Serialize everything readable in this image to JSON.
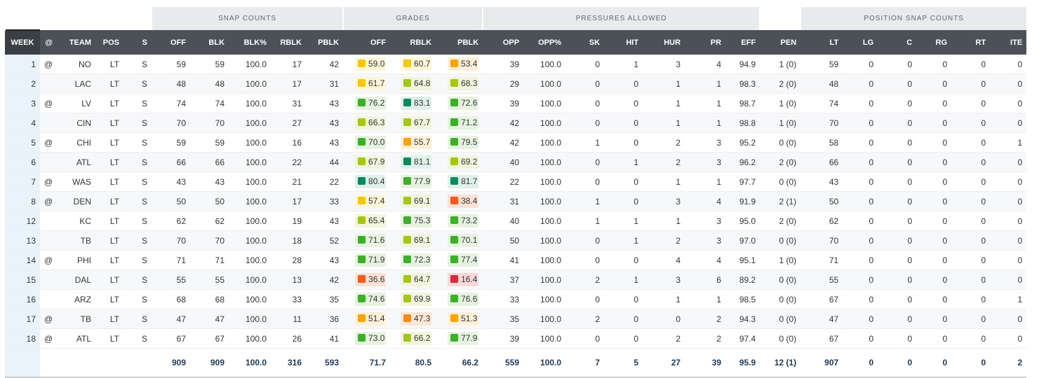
{
  "group_headers": [
    "SNAP COUNTS",
    "GRADES",
    "PRESSURES ALLOWED",
    "POSITION SNAP COUNTS"
  ],
  "columns": [
    "WEEK",
    "@",
    "TEAM",
    "POS",
    "S",
    "OFF",
    "BLK",
    "BLK%",
    "RBLK",
    "PBLK",
    "OFF",
    "RBLK",
    "PBLK",
    "OPP",
    "OPP%",
    "SK",
    "HIT",
    "HUR",
    "PR",
    "EFF",
    "PEN",
    "LT",
    "LG",
    "C",
    "RG",
    "RT",
    "ITE"
  ],
  "rows": [
    [
      "1",
      "@",
      "NO",
      "LT",
      "S",
      "59",
      "59",
      "100.0",
      "17",
      "42",
      "59.0",
      "60.7",
      "53.4",
      "39",
      "100.0",
      "0",
      "1",
      "3",
      "4",
      "94.9",
      "1 (0)",
      "59",
      "0",
      "0",
      "0",
      "0",
      "0"
    ],
    [
      "2",
      null,
      "LAC",
      "LT",
      "S",
      "48",
      "48",
      "100.0",
      "17",
      "31",
      "61.7",
      "64.8",
      "68.3",
      "29",
      "100.0",
      "0",
      "0",
      "1",
      "1",
      "98.3",
      "2 (0)",
      "48",
      "0",
      "0",
      "0",
      "0",
      "0"
    ],
    [
      "3",
      "@",
      "LV",
      "LT",
      "S",
      "74",
      "74",
      "100.0",
      "31",
      "43",
      "76.2",
      "83.1",
      "72.6",
      "39",
      "100.0",
      "0",
      "0",
      "1",
      "1",
      "98.7",
      "1 (0)",
      "74",
      "0",
      "0",
      "0",
      "0",
      "0"
    ],
    [
      "4",
      null,
      "CIN",
      "LT",
      "S",
      "70",
      "70",
      "100.0",
      "27",
      "43",
      "66.3",
      "67.7",
      "71.2",
      "42",
      "100.0",
      "0",
      "0",
      "1",
      "1",
      "98.8",
      "1 (0)",
      "70",
      "0",
      "0",
      "0",
      "0",
      "0"
    ],
    [
      "5",
      "@",
      "CHI",
      "LT",
      "S",
      "59",
      "59",
      "100.0",
      "16",
      "43",
      "70.0",
      "55.7",
      "79.5",
      "42",
      "100.0",
      "1",
      "0",
      "2",
      "3",
      "95.2",
      "0 (0)",
      "58",
      "0",
      "0",
      "0",
      "0",
      "1"
    ],
    [
      "6",
      null,
      "ATL",
      "LT",
      "S",
      "66",
      "66",
      "100.0",
      "22",
      "44",
      "67.9",
      "81.1",
      "69.2",
      "40",
      "100.0",
      "0",
      "1",
      "2",
      "3",
      "96.2",
      "2 (0)",
      "66",
      "0",
      "0",
      "0",
      "0",
      "0"
    ],
    [
      "7",
      "@",
      "WAS",
      "LT",
      "S",
      "43",
      "43",
      "100.0",
      "21",
      "22",
      "80.4",
      "77.9",
      "81.7",
      "22",
      "100.0",
      "0",
      "0",
      "1",
      "1",
      "97.7",
      "0 (0)",
      "43",
      "0",
      "0",
      "0",
      "0",
      "0"
    ],
    [
      "8",
      "@",
      "DEN",
      "LT",
      "S",
      "50",
      "50",
      "100.0",
      "17",
      "33",
      "57.4",
      "69.1",
      "38.4",
      "31",
      "100.0",
      "1",
      "0",
      "3",
      "4",
      "91.9",
      "2 (1)",
      "50",
      "0",
      "0",
      "0",
      "0",
      "0"
    ],
    [
      "12",
      null,
      "KC",
      "LT",
      "S",
      "62",
      "62",
      "100.0",
      "19",
      "43",
      "65.4",
      "75.3",
      "73.2",
      "40",
      "100.0",
      "1",
      "1",
      "1",
      "3",
      "95.0",
      "2 (0)",
      "62",
      "0",
      "0",
      "0",
      "0",
      "0"
    ],
    [
      "13",
      null,
      "TB",
      "LT",
      "S",
      "70",
      "70",
      "100.0",
      "18",
      "52",
      "71.6",
      "69.1",
      "70.1",
      "50",
      "100.0",
      "0",
      "1",
      "2",
      "3",
      "97.0",
      "0 (0)",
      "70",
      "0",
      "0",
      "0",
      "0",
      "0"
    ],
    [
      "14",
      "@",
      "PHI",
      "LT",
      "S",
      "71",
      "71",
      "100.0",
      "28",
      "43",
      "71.9",
      "72.3",
      "77.4",
      "41",
      "100.0",
      "0",
      "0",
      "4",
      "4",
      "95.1",
      "1 (0)",
      "71",
      "0",
      "0",
      "0",
      "0",
      "0"
    ],
    [
      "15",
      null,
      "DAL",
      "LT",
      "S",
      "55",
      "55",
      "100.0",
      "13",
      "42",
      "36.6",
      "64.7",
      "16.4",
      "37",
      "100.0",
      "2",
      "1",
      "3",
      "6",
      "89.2",
      "0 (0)",
      "55",
      "0",
      "0",
      "0",
      "0",
      "0"
    ],
    [
      "16",
      null,
      "ARZ",
      "LT",
      "S",
      "68",
      "68",
      "100.0",
      "33",
      "35",
      "74.6",
      "69.9",
      "76.6",
      "33",
      "100.0",
      "0",
      "0",
      "1",
      "1",
      "98.5",
      "0 (0)",
      "67",
      "0",
      "0",
      "0",
      "0",
      "1"
    ],
    [
      "17",
      "@",
      "TB",
      "LT",
      "S",
      "47",
      "47",
      "100.0",
      "11",
      "36",
      "51.4",
      "47.3",
      "51.3",
      "35",
      "100.0",
      "2",
      "0",
      "0",
      "2",
      "94.3",
      "0 (0)",
      "47",
      "0",
      "0",
      "0",
      "0",
      "0"
    ],
    [
      "18",
      "@",
      "ATL",
      "LT",
      "S",
      "67",
      "67",
      "100.0",
      "26",
      "41",
      "73.0",
      "66.2",
      "77.9",
      "39",
      "100.0",
      "0",
      "0",
      "2",
      "2",
      "97.4",
      "0 (0)",
      "67",
      "0",
      "0",
      "0",
      "0",
      "0"
    ]
  ],
  "totals": [
    null,
    null,
    null,
    null,
    null,
    "909",
    "909",
    "100.0",
    "316",
    "593",
    "71.7",
    "80.5",
    "66.2",
    "559",
    "100.0",
    "7",
    "5",
    "27",
    "39",
    "95.9",
    "12 (1)",
    "907",
    "0",
    "0",
    "0",
    "0",
    "2"
  ]
}
